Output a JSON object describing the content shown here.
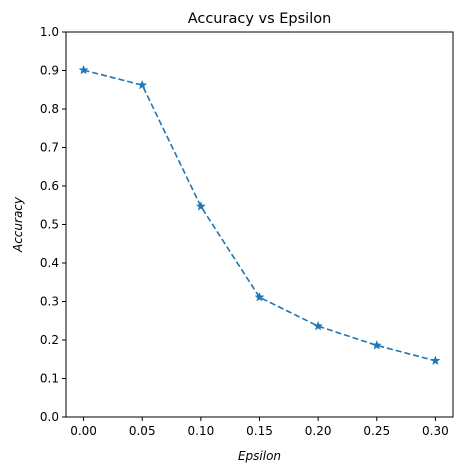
{
  "chart_data": {
    "type": "line",
    "title": "Accuracy vs Epsilon",
    "xlabel": "Epsilon",
    "ylabel": "Accuracy",
    "x": [
      0.0,
      0.05,
      0.1,
      0.15,
      0.2,
      0.25,
      0.3
    ],
    "series": [
      {
        "values": [
          0.901,
          0.862,
          0.547,
          0.311,
          0.236,
          0.186,
          0.146
        ],
        "color": "#1f77b4",
        "line_style": "dashed",
        "marker": "star"
      }
    ],
    "xlim": [
      -0.015,
      0.315
    ],
    "ylim": [
      0.0,
      1.0
    ],
    "x_ticks": [
      "0.00",
      "0.05",
      "0.10",
      "0.15",
      "0.20",
      "0.25",
      "0.30"
    ],
    "y_ticks": [
      "0.0",
      "0.1",
      "0.2",
      "0.3",
      "0.4",
      "0.5",
      "0.6",
      "0.7",
      "0.8",
      "0.9",
      "1.0"
    ],
    "grid": false,
    "legend": "none"
  }
}
